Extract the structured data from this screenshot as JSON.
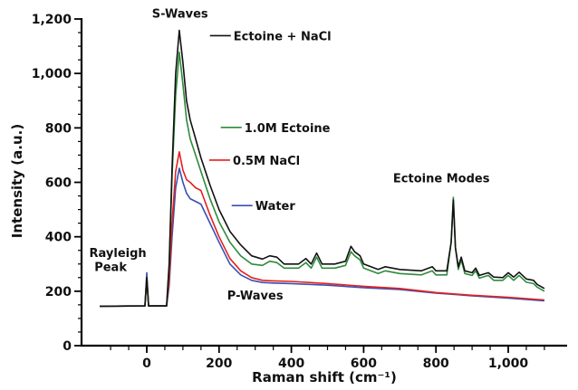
{
  "chart_data": {
    "type": "line",
    "title": "",
    "xlabel": "Raman shift (cm⁻¹)",
    "ylabel": "Intensity (a.u.)",
    "xlim": [
      -150,
      1120
    ],
    "ylim": [
      0,
      1200
    ],
    "x_ticks": [
      0,
      200,
      400,
      600,
      800,
      1000
    ],
    "x_tick_labels": [
      "0",
      "200",
      "400",
      "600",
      "800",
      "1,000"
    ],
    "y_ticks": [
      0,
      200,
      400,
      600,
      800,
      1000,
      1200
    ],
    "y_tick_labels": [
      "0",
      "200",
      "400",
      "600",
      "800",
      "1,000",
      "1,200"
    ],
    "grid": false,
    "series": [
      {
        "name": "Ectoine + NaCl",
        "color": "#111111",
        "points": [
          [
            -130,
            145
          ],
          [
            -5,
            146
          ],
          [
            0,
            250
          ],
          [
            5,
            146
          ],
          [
            55,
            146
          ],
          [
            62,
            300
          ],
          [
            70,
            650
          ],
          [
            80,
            1000
          ],
          [
            90,
            1158
          ],
          [
            100,
            1040
          ],
          [
            110,
            900
          ],
          [
            120,
            830
          ],
          [
            135,
            760
          ],
          [
            150,
            690
          ],
          [
            175,
            590
          ],
          [
            200,
            500
          ],
          [
            230,
            420
          ],
          [
            260,
            370
          ],
          [
            290,
            330
          ],
          [
            320,
            318
          ],
          [
            340,
            330
          ],
          [
            360,
            325
          ],
          [
            380,
            300
          ],
          [
            420,
            300
          ],
          [
            440,
            320
          ],
          [
            455,
            300
          ],
          [
            470,
            340
          ],
          [
            485,
            300
          ],
          [
            520,
            300
          ],
          [
            550,
            310
          ],
          [
            565,
            365
          ],
          [
            575,
            345
          ],
          [
            590,
            330
          ],
          [
            600,
            300
          ],
          [
            640,
            280
          ],
          [
            660,
            290
          ],
          [
            700,
            280
          ],
          [
            760,
            275
          ],
          [
            790,
            290
          ],
          [
            800,
            275
          ],
          [
            830,
            275
          ],
          [
            842,
            380
          ],
          [
            848,
            535
          ],
          [
            854,
            360
          ],
          [
            862,
            290
          ],
          [
            870,
            325
          ],
          [
            880,
            275
          ],
          [
            900,
            268
          ],
          [
            910,
            285
          ],
          [
            920,
            258
          ],
          [
            945,
            268
          ],
          [
            960,
            252
          ],
          [
            985,
            250
          ],
          [
            1000,
            268
          ],
          [
            1015,
            252
          ],
          [
            1030,
            270
          ],
          [
            1050,
            245
          ],
          [
            1070,
            240
          ],
          [
            1080,
            225
          ],
          [
            1100,
            210
          ]
        ]
      },
      {
        "name": "1.0M Ectoine",
        "color": "#2e8b3a",
        "points": [
          [
            -130,
            145
          ],
          [
            -5,
            146
          ],
          [
            0,
            250
          ],
          [
            5,
            146
          ],
          [
            55,
            146
          ],
          [
            62,
            290
          ],
          [
            70,
            620
          ],
          [
            80,
            920
          ],
          [
            90,
            1078
          ],
          [
            100,
            960
          ],
          [
            110,
            830
          ],
          [
            120,
            760
          ],
          [
            135,
            700
          ],
          [
            150,
            640
          ],
          [
            175,
            540
          ],
          [
            200,
            455
          ],
          [
            230,
            380
          ],
          [
            260,
            330
          ],
          [
            290,
            300
          ],
          [
            320,
            295
          ],
          [
            340,
            310
          ],
          [
            360,
            305
          ],
          [
            380,
            285
          ],
          [
            420,
            285
          ],
          [
            440,
            305
          ],
          [
            455,
            285
          ],
          [
            470,
            325
          ],
          [
            485,
            285
          ],
          [
            520,
            285
          ],
          [
            550,
            295
          ],
          [
            565,
            345
          ],
          [
            575,
            330
          ],
          [
            590,
            315
          ],
          [
            600,
            285
          ],
          [
            640,
            265
          ],
          [
            660,
            275
          ],
          [
            700,
            265
          ],
          [
            760,
            260
          ],
          [
            790,
            275
          ],
          [
            800,
            260
          ],
          [
            830,
            260
          ],
          [
            842,
            380
          ],
          [
            848,
            545
          ],
          [
            854,
            360
          ],
          [
            862,
            280
          ],
          [
            870,
            315
          ],
          [
            880,
            265
          ],
          [
            900,
            258
          ],
          [
            910,
            275
          ],
          [
            920,
            248
          ],
          [
            945,
            258
          ],
          [
            960,
            240
          ],
          [
            985,
            240
          ],
          [
            1000,
            258
          ],
          [
            1015,
            240
          ],
          [
            1030,
            258
          ],
          [
            1050,
            233
          ],
          [
            1070,
            228
          ],
          [
            1080,
            215
          ],
          [
            1100,
            200
          ]
        ]
      },
      {
        "name": "0.5M NaCl",
        "color": "#e3201e",
        "points": [
          [
            -130,
            145
          ],
          [
            -5,
            146
          ],
          [
            0,
            250
          ],
          [
            5,
            146
          ],
          [
            55,
            146
          ],
          [
            62,
            240
          ],
          [
            70,
            450
          ],
          [
            80,
            640
          ],
          [
            90,
            712
          ],
          [
            100,
            645
          ],
          [
            110,
            610
          ],
          [
            120,
            600
          ],
          [
            135,
            580
          ],
          [
            150,
            570
          ],
          [
            175,
            480
          ],
          [
            200,
            400
          ],
          [
            230,
            320
          ],
          [
            260,
            275
          ],
          [
            290,
            250
          ],
          [
            320,
            240
          ],
          [
            350,
            238
          ],
          [
            400,
            236
          ],
          [
            450,
            232
          ],
          [
            500,
            228
          ],
          [
            600,
            218
          ],
          [
            700,
            210
          ],
          [
            800,
            195
          ],
          [
            900,
            185
          ],
          [
            1000,
            178
          ],
          [
            1100,
            168
          ]
        ]
      },
      {
        "name": "Water",
        "color": "#3a4fb3",
        "points": [
          [
            -130,
            145
          ],
          [
            -5,
            146
          ],
          [
            0,
            268
          ],
          [
            5,
            146
          ],
          [
            55,
            146
          ],
          [
            62,
            220
          ],
          [
            70,
            400
          ],
          [
            80,
            580
          ],
          [
            90,
            652
          ],
          [
            100,
            600
          ],
          [
            110,
            560
          ],
          [
            120,
            540
          ],
          [
            135,
            530
          ],
          [
            150,
            520
          ],
          [
            175,
            450
          ],
          [
            200,
            380
          ],
          [
            230,
            300
          ],
          [
            260,
            260
          ],
          [
            290,
            240
          ],
          [
            320,
            232
          ],
          [
            350,
            230
          ],
          [
            400,
            228
          ],
          [
            450,
            225
          ],
          [
            500,
            222
          ],
          [
            600,
            213
          ],
          [
            700,
            206
          ],
          [
            800,
            193
          ],
          [
            900,
            183
          ],
          [
            1000,
            175
          ],
          [
            1100,
            165
          ]
        ]
      }
    ],
    "annotations": [
      {
        "text": "S-Waves",
        "x": 92,
        "y": 1205
      },
      {
        "text": "Ectoine + NaCl",
        "x": 240,
        "y": 1122,
        "target": "Ectoine + NaCl"
      },
      {
        "text": "1.0M Ectoine",
        "x": 270,
        "y": 785,
        "target": "1.0M Ectoine"
      },
      {
        "text": "0.5M NaCl",
        "x": 238,
        "y": 665,
        "target": "0.5M NaCl"
      },
      {
        "text": "Water",
        "x": 300,
        "y": 498,
        "target": "Water"
      },
      {
        "text": "Ectoine Modes",
        "x": 815,
        "y": 600
      },
      {
        "text": "Rayleigh",
        "x": -80,
        "y": 325
      },
      {
        "text": "Peak",
        "x": -100,
        "y": 275
      },
      {
        "text": "P-Waves",
        "x": 300,
        "y": 170
      }
    ]
  }
}
